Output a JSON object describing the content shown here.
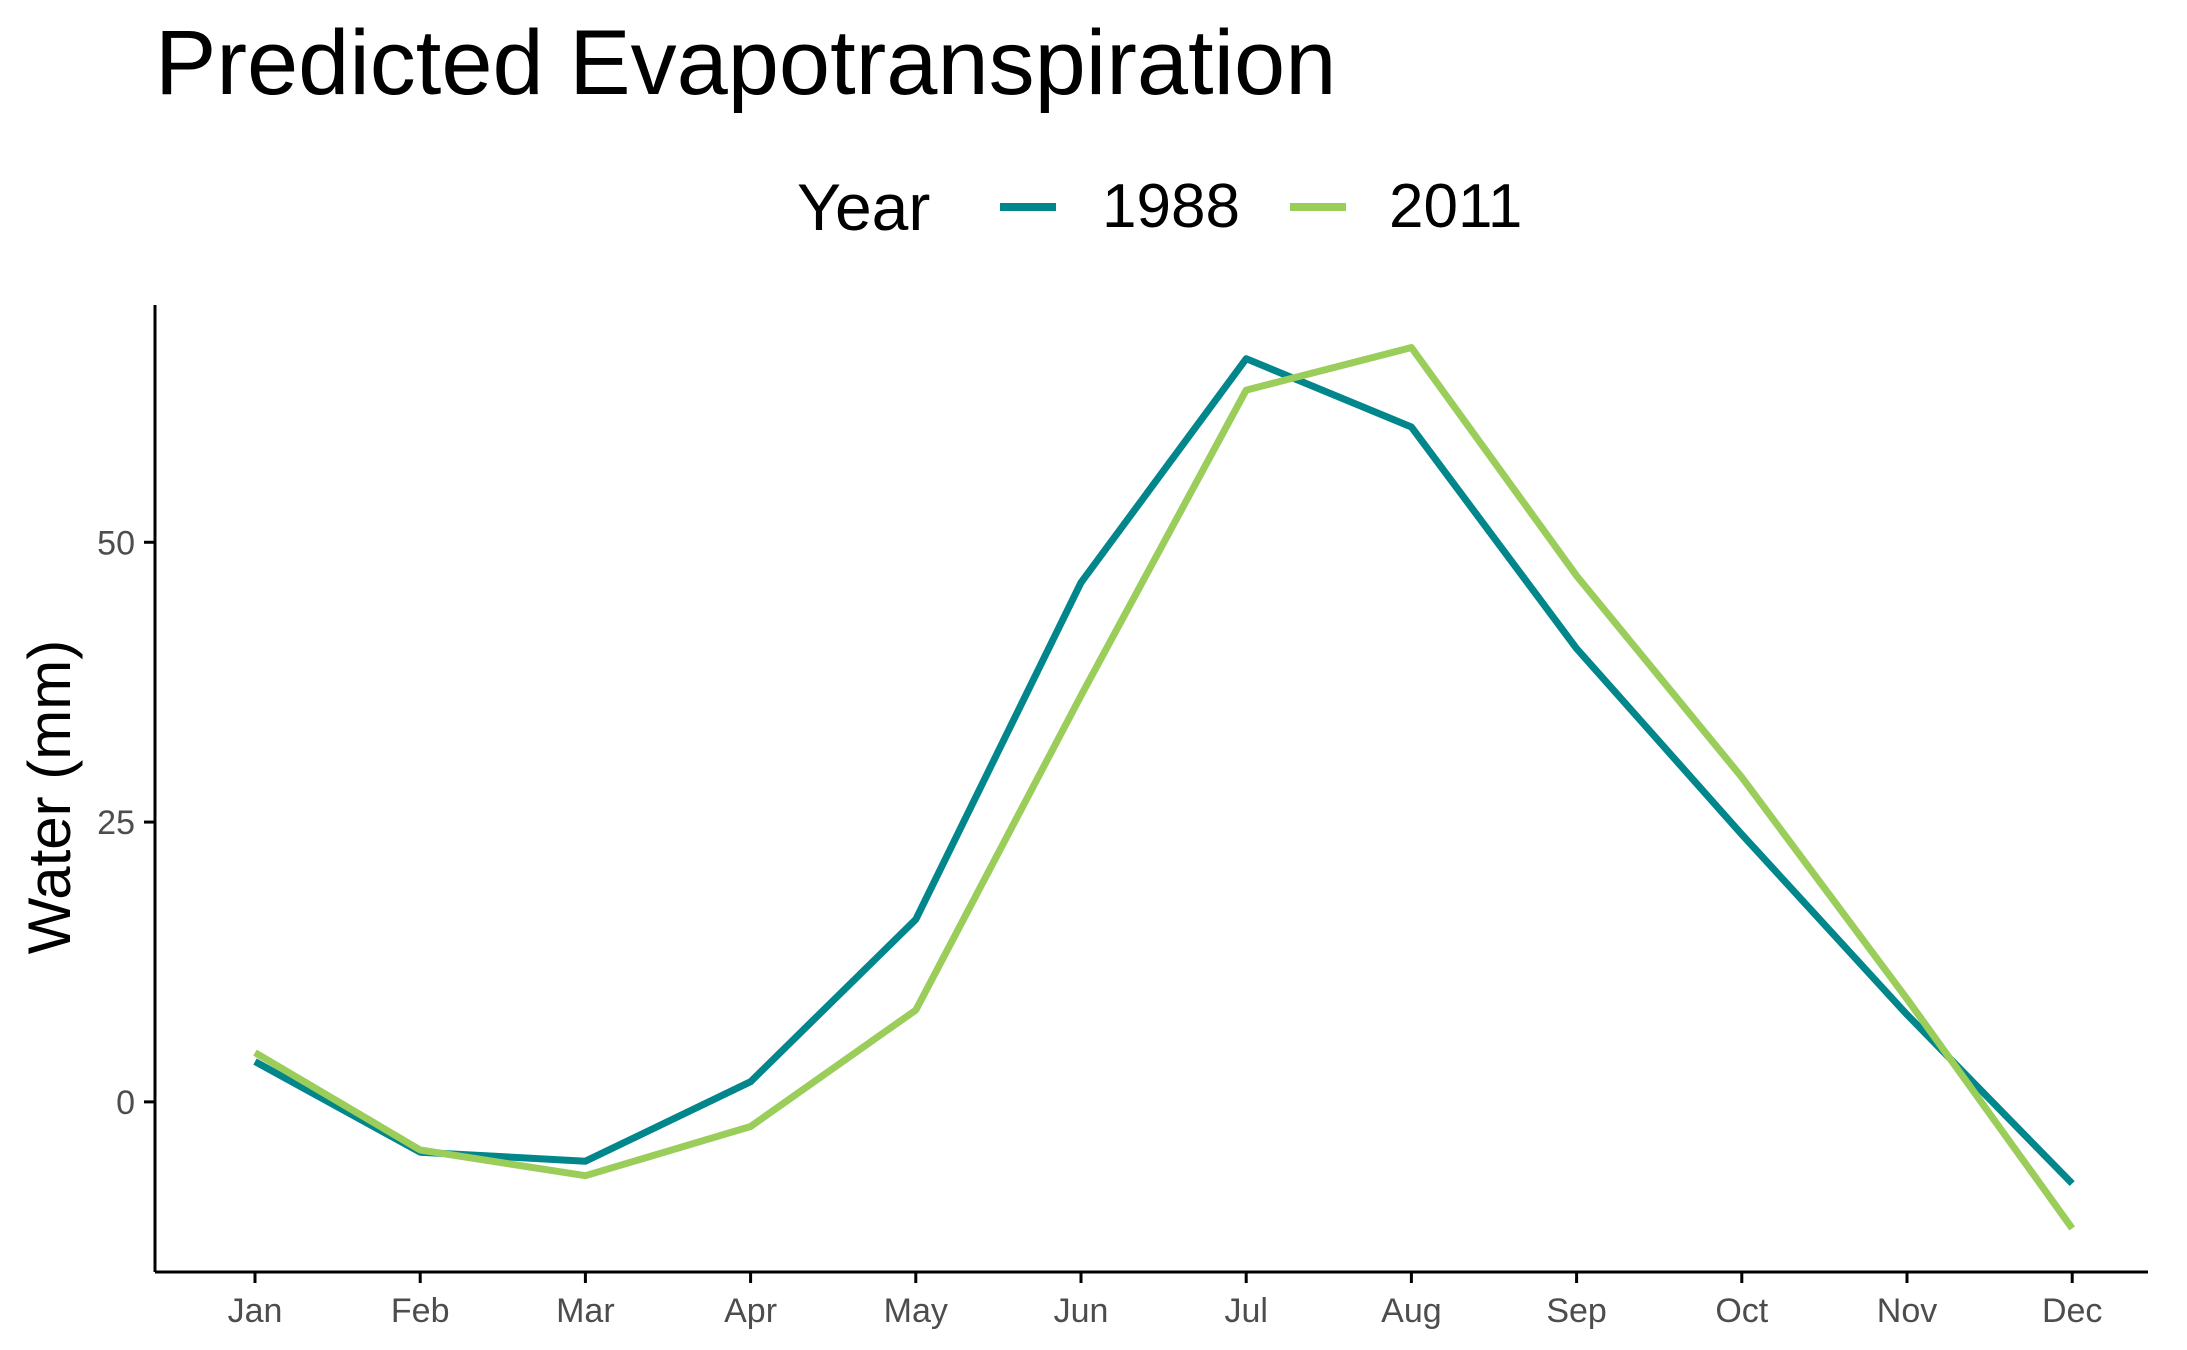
{
  "chart_data": {
    "type": "line",
    "title": "Predicted Evapotranspiration",
    "xlabel": "",
    "ylabel": "Water (mm)",
    "legend_title": "Year",
    "legend_position": "top",
    "grid": false,
    "categories": [
      "Jan",
      "Feb",
      "Mar",
      "Apr",
      "May",
      "Jun",
      "Jul",
      "Aug",
      "Sep",
      "Oct",
      "Nov",
      "Dec"
    ],
    "ylim": [
      -15.2,
      71.2
    ],
    "yticks": [
      0,
      25,
      50
    ],
    "series": [
      {
        "name": "1988",
        "color": "#00868B",
        "values": [
          3.6,
          -4.5,
          -5.3,
          1.8,
          16.3,
          46.4,
          66.4,
          60.3,
          40.5,
          23.9,
          7.8,
          -7.3
        ]
      },
      {
        "name": "2011",
        "color": "#9ACD5A",
        "values": [
          4.4,
          -4.3,
          -6.6,
          -2.2,
          8.2,
          36.3,
          63.6,
          67.4,
          47.0,
          29.0,
          9.2,
          -11.3
        ]
      }
    ]
  }
}
